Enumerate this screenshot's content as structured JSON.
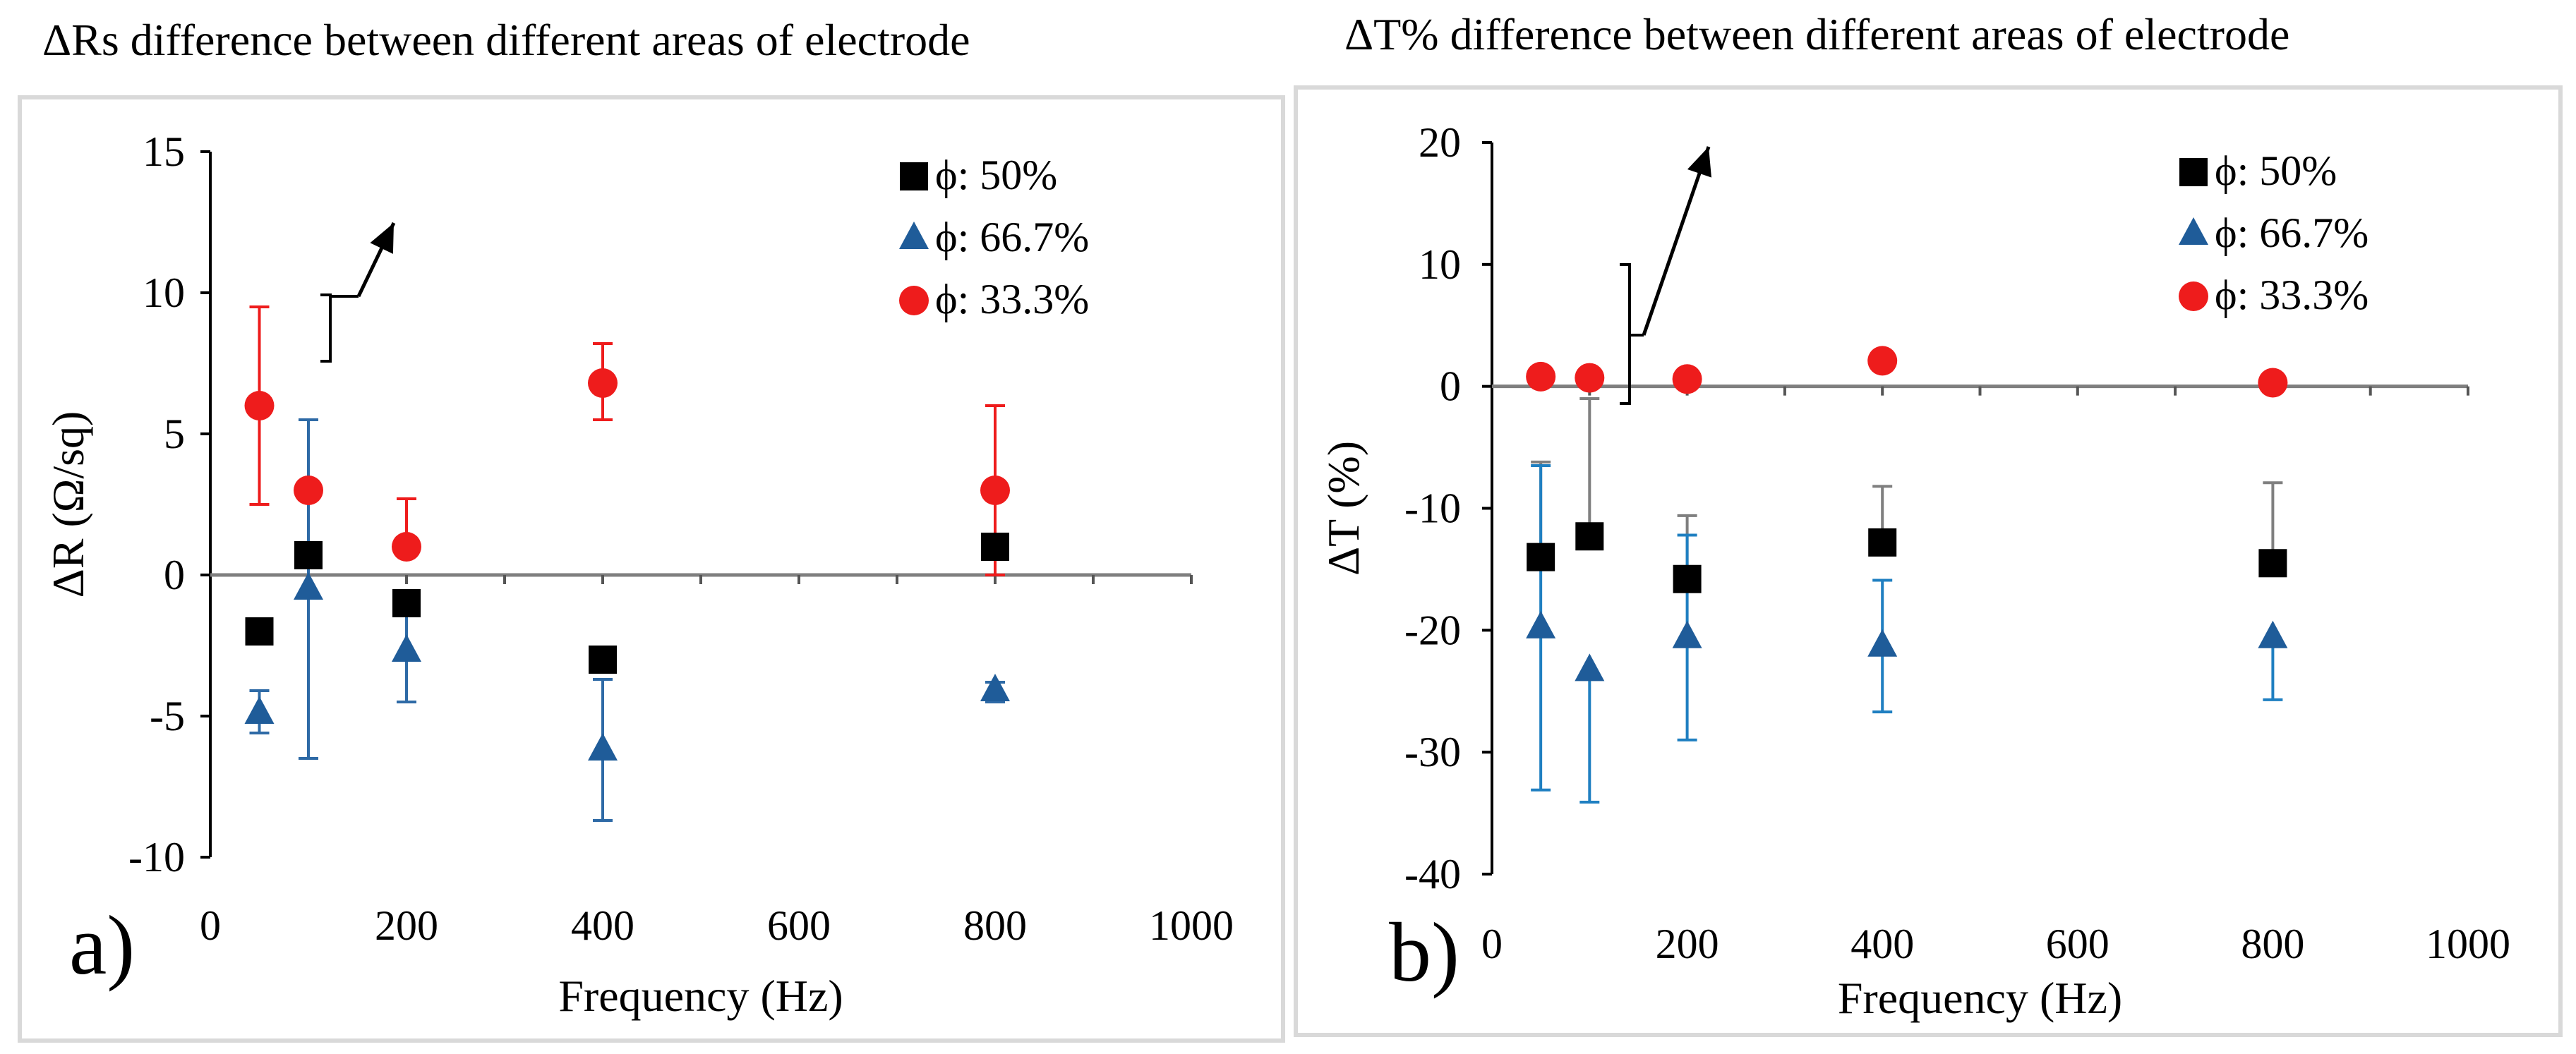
{
  "figure": {
    "panels": [
      {
        "label": "a)"
      },
      {
        "label": "b)"
      }
    ]
  },
  "chart_data": [
    {
      "type": "scatter",
      "title": "ΔRs difference between different areas of electrode",
      "panel_label": "a)",
      "xlabel": "Frequency (Hz)",
      "ylabel": "ΔR (Ω/sq)",
      "xlim": [
        0,
        1000
      ],
      "ylim": [
        -10,
        15
      ],
      "xticks": [
        0,
        200,
        400,
        600,
        800,
        1000
      ],
      "yticks": [
        -10,
        -5,
        0,
        5,
        10,
        15
      ],
      "legend_position": "top-right",
      "series": [
        {
          "name": "ϕ: 50%",
          "marker": "square",
          "color": "#000000",
          "error_color": "#5a5a5a",
          "x": [
            50,
            100,
            200,
            400,
            800
          ],
          "y": [
            -2,
            0.7,
            -1,
            -3,
            1
          ],
          "err_low": [
            0,
            0,
            0,
            0,
            0
          ],
          "err_high": [
            0,
            0,
            0,
            0,
            0
          ]
        },
        {
          "name": "ϕ: 66.7%",
          "marker": "triangle",
          "color": "#1f5c99",
          "error_color": "#2e6aa6",
          "x": [
            50,
            100,
            200,
            400,
            800
          ],
          "y": [
            -4.9,
            -0.5,
            -2.7,
            -6.2,
            -4.1
          ],
          "err_low": [
            0.7,
            6.0,
            1.8,
            2.5,
            0.4
          ],
          "err_high": [
            0.8,
            6.0,
            1.8,
            2.5,
            0.3
          ]
        },
        {
          "name": "ϕ: 33.3%",
          "marker": "circle",
          "color": "#ee1c1c",
          "error_color": "#ee1c1c",
          "x": [
            50,
            100,
            200,
            400,
            800
          ],
          "y": [
            6,
            3,
            1,
            6.8,
            3
          ],
          "err_low": [
            3.5,
            0,
            0,
            1.3,
            3.0
          ],
          "err_high": [
            3.5,
            0,
            1.7,
            1.4,
            3.0
          ]
        }
      ],
      "annotations": [
        {
          "type": "bracket-arrow"
        }
      ]
    },
    {
      "type": "scatter",
      "title": "ΔT% difference between different areas of electrode",
      "panel_label": "b)",
      "xlabel": "Frequency (Hz)",
      "ylabel": "ΔT (%)",
      "xlim": [
        0,
        1000
      ],
      "ylim": [
        -40,
        20
      ],
      "xticks": [
        0,
        200,
        400,
        600,
        800,
        1000
      ],
      "yticks": [
        -40,
        -30,
        -20,
        -10,
        0,
        10,
        20
      ],
      "legend_position": "top-right",
      "series": [
        {
          "name": "ϕ: 50%",
          "marker": "square",
          "color": "#000000",
          "error_color": "#7f7f7f",
          "x": [
            50,
            100,
            200,
            400,
            800
          ],
          "y": [
            -14,
            -12.3,
            -15.8,
            -12.8,
            -14.5
          ],
          "err_low": [
            0,
            0,
            0,
            0,
            0
          ],
          "err_high": [
            7.8,
            11.3,
            5.2,
            4.6,
            6.6
          ]
        },
        {
          "name": "ϕ: 66.7%",
          "marker": "triangle",
          "color": "#1f5c99",
          "error_color": "#1f7fc1",
          "x": [
            50,
            100,
            200,
            400,
            800
          ],
          "y": [
            -19.8,
            -23.3,
            -20.6,
            -21.3,
            -20.6
          ],
          "err_low": [
            13.3,
            10.8,
            8.4,
            5.4,
            5.1
          ],
          "err_high": [
            13.3,
            0,
            8.4,
            5.4,
            0
          ]
        },
        {
          "name": "ϕ: 33.3%",
          "marker": "circle",
          "color": "#ee1c1c",
          "error_color": "#ee1c1c",
          "x": [
            50,
            100,
            200,
            400,
            800
          ],
          "y": [
            0.8,
            0.7,
            0.6,
            2.1,
            0.3
          ],
          "err_low": [
            0,
            0,
            0,
            0,
            0
          ],
          "err_high": [
            0,
            0,
            0,
            0,
            0
          ]
        }
      ],
      "annotations": [
        {
          "type": "bracket-arrow"
        }
      ]
    }
  ]
}
